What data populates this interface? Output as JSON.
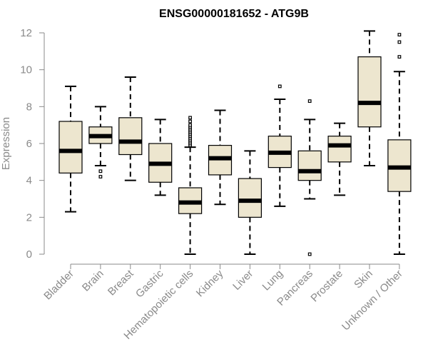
{
  "chart_data": {
    "type": "box",
    "title": "ENSG00000181652 - ATG9B",
    "xlabel": "",
    "ylabel": "Expression",
    "ylim": [
      0,
      12
    ],
    "yticks": [
      0,
      2,
      4,
      6,
      8,
      10,
      12
    ],
    "box_fill": "#ede6cf",
    "grid": false,
    "categories": [
      "Bladder",
      "Brain",
      "Breast",
      "Gastric",
      "Hematopoietic cells",
      "Kidney",
      "Liver",
      "Lung",
      "Pancreas",
      "Prostate",
      "Skin",
      "Unknown / Other"
    ],
    "boxes": [
      {
        "name": "Bladder",
        "whisker_low": 2.3,
        "q1": 4.4,
        "median": 5.6,
        "q3": 7.2,
        "whisker_high": 9.1,
        "outliers": []
      },
      {
        "name": "Brain",
        "whisker_low": 4.8,
        "q1": 6.0,
        "median": 6.4,
        "q3": 6.9,
        "whisker_high": 8.0,
        "outliers": [
          4.2,
          4.5
        ]
      },
      {
        "name": "Breast",
        "whisker_low": 4.0,
        "q1": 5.4,
        "median": 6.1,
        "q3": 7.4,
        "whisker_high": 9.6,
        "outliers": []
      },
      {
        "name": "Gastric",
        "whisker_low": 3.2,
        "q1": 3.9,
        "median": 4.9,
        "q3": 6.0,
        "whisker_high": 7.3,
        "outliers": []
      },
      {
        "name": "Hematopoietic cells",
        "whisker_low": 0.0,
        "q1": 2.2,
        "median": 2.8,
        "q3": 3.6,
        "whisker_high": 5.8,
        "outliers": [
          5.9,
          6.0,
          6.1,
          6.2,
          6.3,
          6.4,
          6.5,
          6.6,
          6.7,
          6.8,
          6.9,
          7.0,
          7.2,
          7.4
        ]
      },
      {
        "name": "Kidney",
        "whisker_low": 2.7,
        "q1": 4.3,
        "median": 5.2,
        "q3": 5.9,
        "whisker_high": 7.8,
        "outliers": []
      },
      {
        "name": "Liver",
        "whisker_low": 0.0,
        "q1": 2.0,
        "median": 2.9,
        "q3": 4.1,
        "whisker_high": 5.6,
        "outliers": []
      },
      {
        "name": "Lung",
        "whisker_low": 2.6,
        "q1": 4.7,
        "median": 5.5,
        "q3": 6.4,
        "whisker_high": 8.4,
        "outliers": [
          9.1
        ]
      },
      {
        "name": "Pancreas",
        "whisker_low": 3.0,
        "q1": 4.0,
        "median": 4.5,
        "q3": 5.6,
        "whisker_high": 7.3,
        "outliers": [
          0.0,
          8.3
        ]
      },
      {
        "name": "Prostate",
        "whisker_low": 3.2,
        "q1": 5.0,
        "median": 5.9,
        "q3": 6.4,
        "whisker_high": 7.1,
        "outliers": []
      },
      {
        "name": "Skin",
        "whisker_low": 4.8,
        "q1": 6.9,
        "median": 8.2,
        "q3": 10.7,
        "whisker_high": 12.1,
        "outliers": []
      },
      {
        "name": "Unknown / Other",
        "whisker_low": 0.0,
        "q1": 3.4,
        "median": 4.7,
        "q3": 6.2,
        "whisker_high": 9.9,
        "outliers": [
          10.7,
          11.5,
          11.9
        ]
      }
    ]
  }
}
